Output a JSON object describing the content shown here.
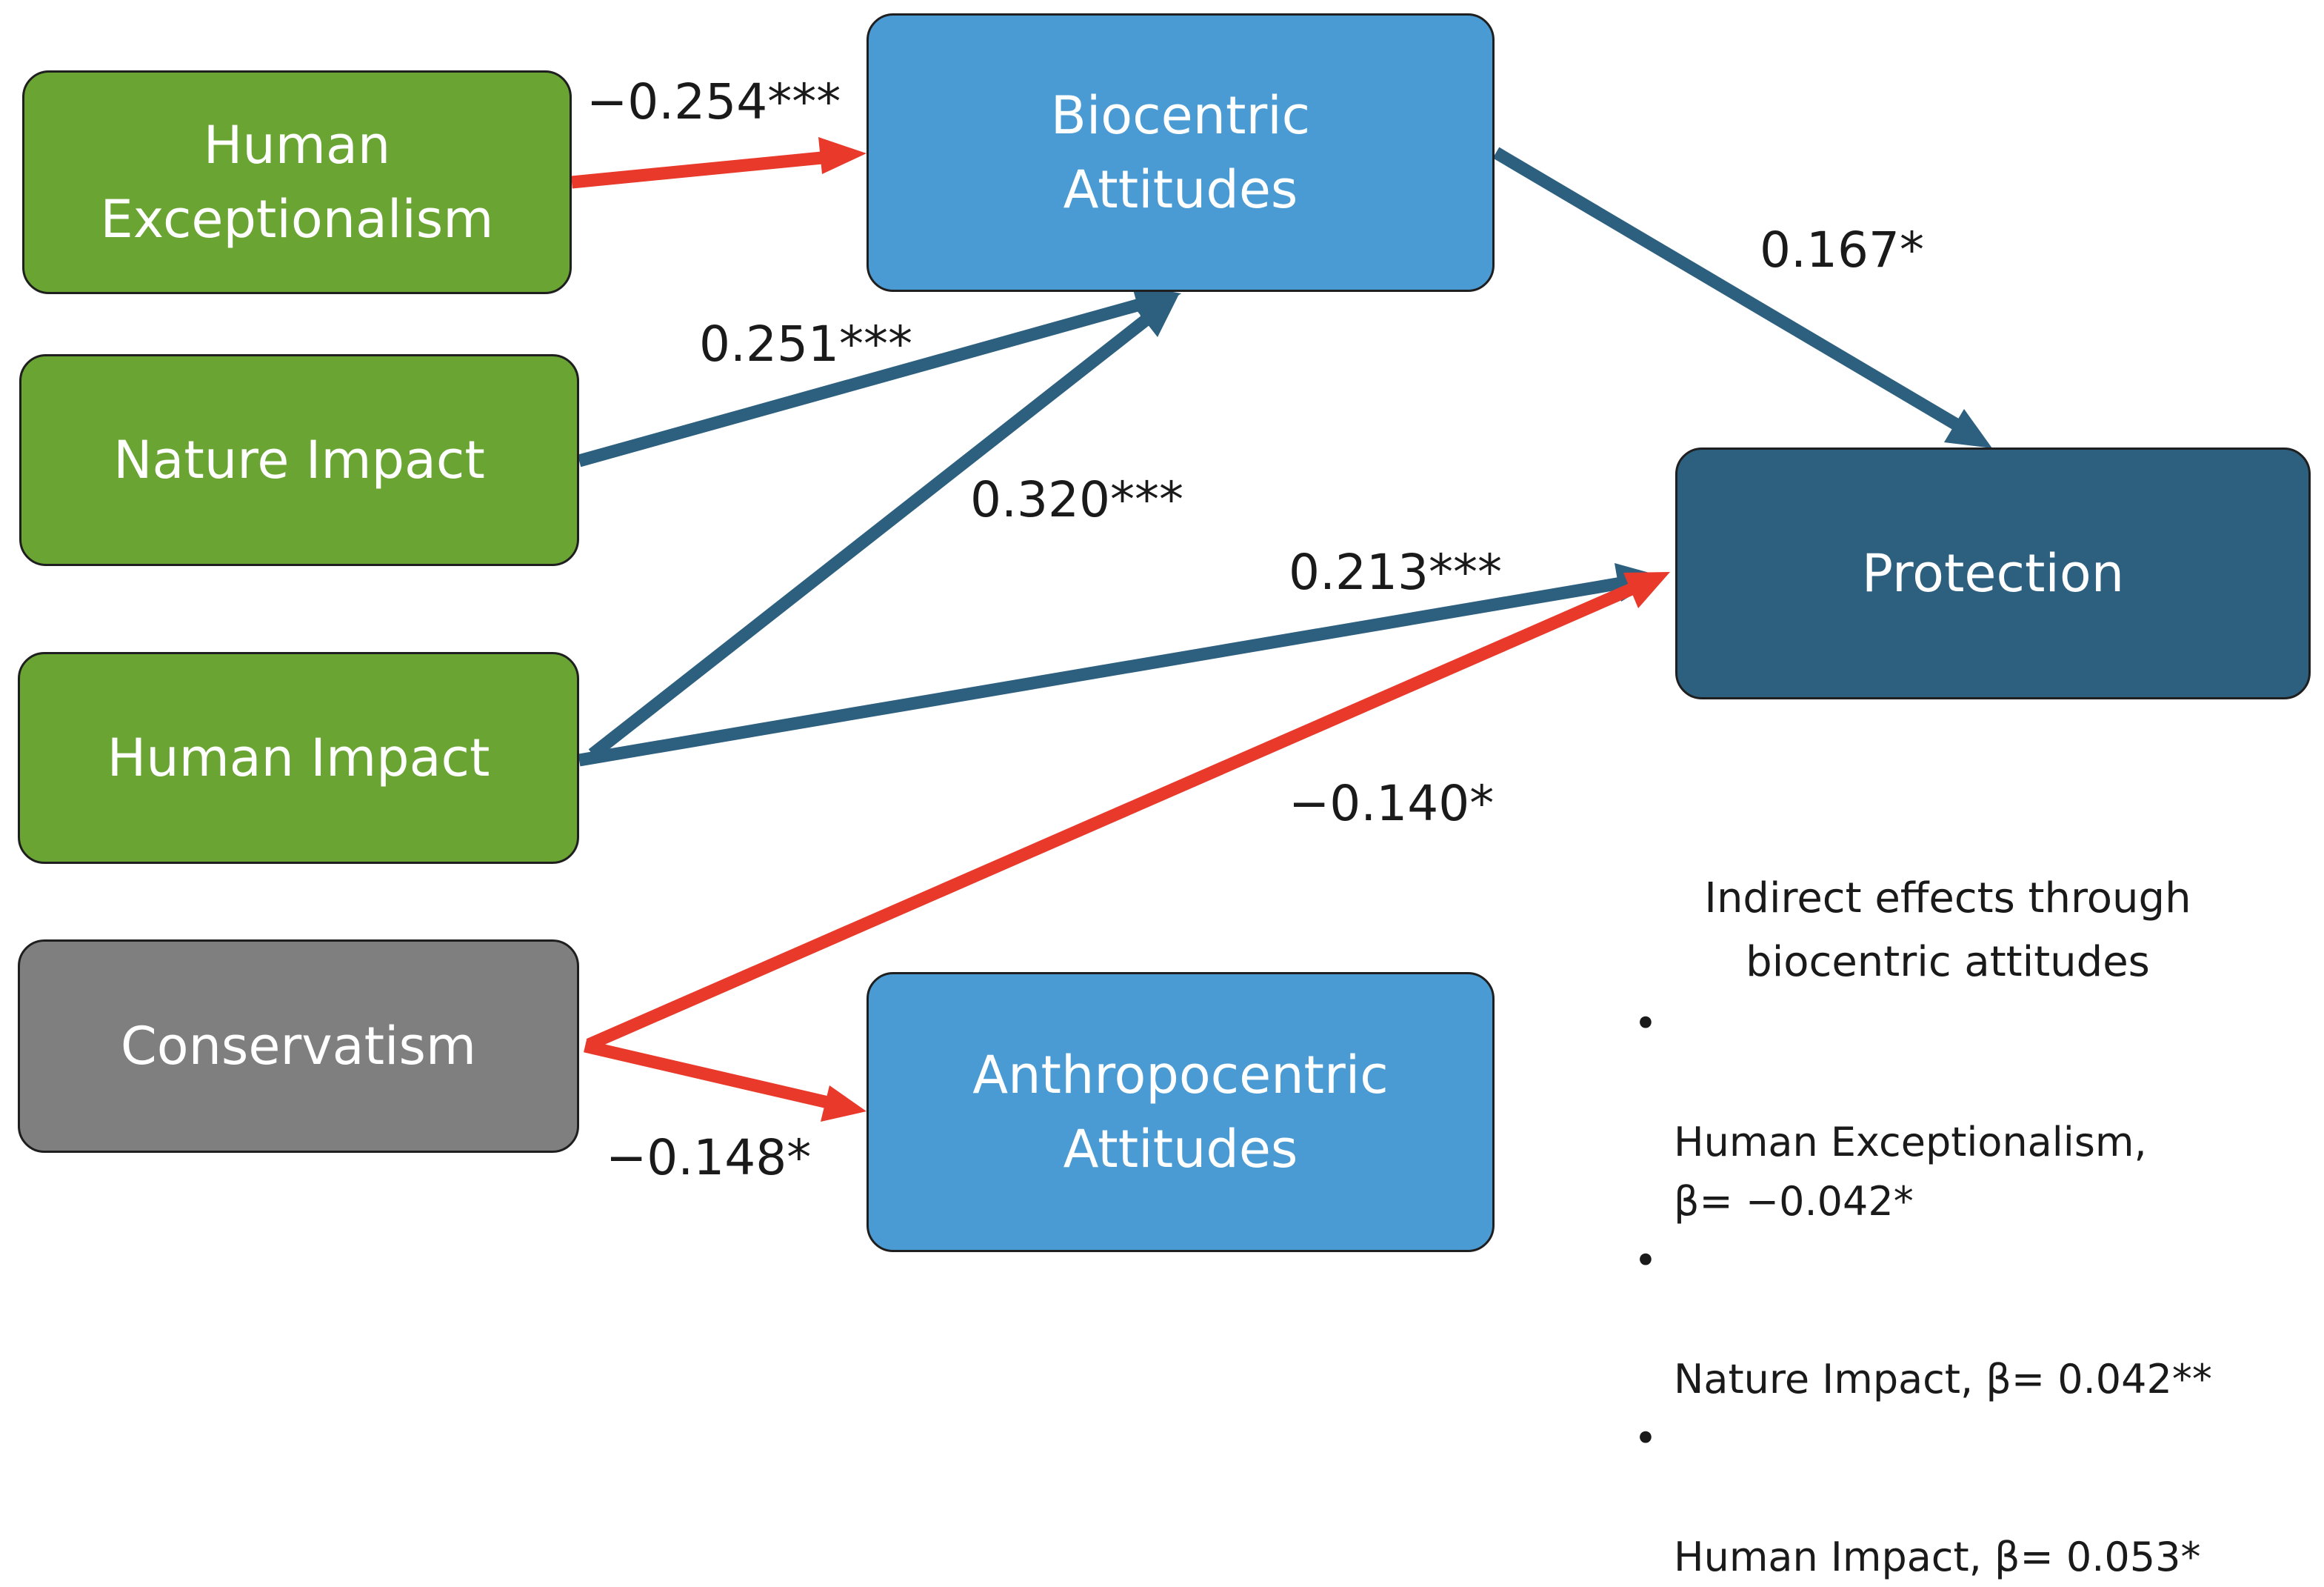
{
  "nodes": {
    "human_exceptionalism": {
      "label": "Human\nExceptionalism",
      "color": "#6aa533"
    },
    "nature_impact": {
      "label": "Nature Impact",
      "color": "#6aa533"
    },
    "human_impact": {
      "label": "Human Impact",
      "color": "#6aa533"
    },
    "conservatism": {
      "label": "Conservatism",
      "color": "#7f7f7f"
    },
    "biocentric": {
      "label": "Biocentric\nAttitudes",
      "color": "#4a9bd3"
    },
    "anthropocentric": {
      "label": "Anthropocentric\nAttitudes",
      "color": "#4a9bd3"
    },
    "protection": {
      "label": "Protection",
      "color": "#2d5f7f"
    }
  },
  "edges": [
    {
      "id": "he_bio",
      "label": "−0.254***",
      "color": "#e8392b"
    },
    {
      "id": "ni_bio",
      "label": "0.251***",
      "color": "#2d5f7f"
    },
    {
      "id": "hi_bio",
      "label": "0.320***",
      "color": "#2d5f7f"
    },
    {
      "id": "hi_prot",
      "label": "0.213***",
      "color": "#2d5f7f"
    },
    {
      "id": "bio_prot",
      "label": "0.167*",
      "color": "#2d5f7f"
    },
    {
      "id": "cons_prot",
      "label": "−0.140*",
      "color": "#e8392b"
    },
    {
      "id": "cons_anthro",
      "label": "−0.148*",
      "color": "#e8392b"
    }
  ],
  "indirect": {
    "title": "Indirect effects through\nbiocentric attitudes",
    "items": [
      "Human Exceptionalism,\nβ= −0.042*",
      "Nature Impact, β= 0.042**",
      "Human Impact, β= 0.053*"
    ]
  }
}
